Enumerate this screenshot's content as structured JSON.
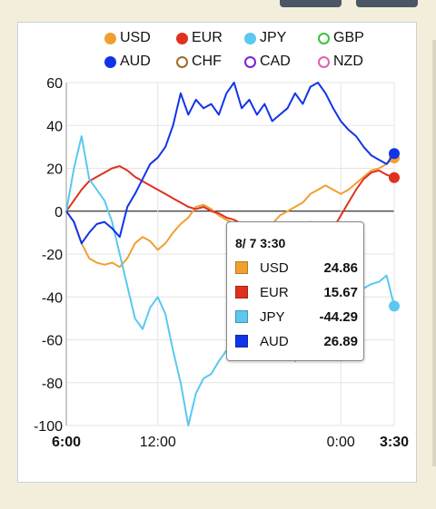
{
  "chart_data": {
    "type": "line",
    "ylim": [
      -100,
      60
    ],
    "yticks": [
      60,
      40,
      20,
      0,
      -20,
      -40,
      -60,
      -80,
      -100
    ],
    "xticks": [
      {
        "label": "6:00",
        "bold": true,
        "t": 0
      },
      {
        "label": "12:00",
        "bold": false,
        "t": 6
      },
      {
        "label": "0:00",
        "bold": false,
        "t": 18
      },
      {
        "label": "3:30",
        "bold": true,
        "t": 21.5
      }
    ],
    "xlim": [
      0,
      21.5
    ],
    "legend": [
      {
        "name": "USD",
        "color": "#f0a030",
        "filled": true
      },
      {
        "name": "EUR",
        "color": "#e03020",
        "filled": true
      },
      {
        "name": "JPY",
        "color": "#5ac8f0",
        "filled": true
      },
      {
        "name": "GBP",
        "color": "#3cc23c",
        "filled": false
      },
      {
        "name": "AUD",
        "color": "#1034e8",
        "filled": true
      },
      {
        "name": "CHF",
        "color": "#a06a28",
        "filled": false
      },
      {
        "name": "CAD",
        "color": "#7a20e0",
        "filled": false
      },
      {
        "name": "NZD",
        "color": "#e060b0",
        "filled": false
      }
    ],
    "series": [
      {
        "name": "USD",
        "color": "#f0a030",
        "points": [
          [
            0,
            0
          ],
          [
            0.5,
            -5
          ],
          [
            1,
            -15
          ],
          [
            1.5,
            -22
          ],
          [
            2,
            -24
          ],
          [
            2.5,
            -25
          ],
          [
            3,
            -24
          ],
          [
            3.5,
            -26
          ],
          [
            4,
            -22
          ],
          [
            4.5,
            -15
          ],
          [
            5,
            -12
          ],
          [
            5.5,
            -14
          ],
          [
            6,
            -18
          ],
          [
            6.5,
            -15
          ],
          [
            7,
            -10
          ],
          [
            7.5,
            -6
          ],
          [
            8,
            -3
          ],
          [
            8.5,
            2
          ],
          [
            9,
            3
          ],
          [
            9.5,
            1
          ],
          [
            10,
            -2
          ],
          [
            10.5,
            -4
          ],
          [
            11,
            -6
          ],
          [
            11.5,
            -8
          ],
          [
            12,
            -10
          ],
          [
            12.5,
            -12
          ],
          [
            13,
            -10
          ],
          [
            13.5,
            -6
          ],
          [
            14,
            -2
          ],
          [
            14.5,
            0
          ],
          [
            15,
            2
          ],
          [
            15.5,
            4
          ],
          [
            16,
            8
          ],
          [
            16.5,
            10
          ],
          [
            17,
            12
          ],
          [
            17.5,
            10
          ],
          [
            18,
            8
          ],
          [
            18.5,
            10
          ],
          [
            19,
            13
          ],
          [
            19.5,
            16
          ],
          [
            20,
            19
          ],
          [
            20.5,
            20
          ],
          [
            21,
            22
          ],
          [
            21.5,
            24.86
          ]
        ]
      },
      {
        "name": "EUR",
        "color": "#e03020",
        "points": [
          [
            0,
            0
          ],
          [
            0.5,
            5
          ],
          [
            1,
            10
          ],
          [
            1.5,
            14
          ],
          [
            2,
            16
          ],
          [
            2.5,
            18
          ],
          [
            3,
            20
          ],
          [
            3.5,
            21
          ],
          [
            4,
            19
          ],
          [
            4.5,
            16
          ],
          [
            5,
            14
          ],
          [
            5.5,
            12
          ],
          [
            6,
            10
          ],
          [
            6.5,
            8
          ],
          [
            7,
            6
          ],
          [
            7.5,
            4
          ],
          [
            8,
            2
          ],
          [
            8.5,
            1
          ],
          [
            9,
            2
          ],
          [
            9.5,
            0
          ],
          [
            10,
            -1
          ],
          [
            10.5,
            -3
          ],
          [
            11,
            -4
          ],
          [
            11.5,
            -6
          ],
          [
            12,
            -8
          ],
          [
            12.5,
            -10
          ],
          [
            13,
            -12
          ],
          [
            13.5,
            -14
          ],
          [
            14,
            -16
          ],
          [
            14.5,
            -15
          ],
          [
            15,
            -12
          ],
          [
            15.5,
            -8
          ],
          [
            16,
            -5
          ],
          [
            16.5,
            -8
          ],
          [
            17,
            -10
          ],
          [
            17.5,
            -8
          ],
          [
            18,
            -2
          ],
          [
            18.5,
            4
          ],
          [
            19,
            10
          ],
          [
            19.5,
            15
          ],
          [
            20,
            18
          ],
          [
            20.5,
            19
          ],
          [
            21,
            17
          ],
          [
            21.5,
            15.67
          ]
        ]
      },
      {
        "name": "JPY",
        "color": "#5ac8f0",
        "points": [
          [
            0,
            0
          ],
          [
            0.5,
            20
          ],
          [
            1,
            35
          ],
          [
            1.5,
            15
          ],
          [
            2,
            10
          ],
          [
            2.5,
            5
          ],
          [
            3,
            -5
          ],
          [
            3.5,
            -20
          ],
          [
            4,
            -35
          ],
          [
            4.5,
            -50
          ],
          [
            5,
            -55
          ],
          [
            5.5,
            -45
          ],
          [
            6,
            -40
          ],
          [
            6.5,
            -48
          ],
          [
            7,
            -65
          ],
          [
            7.5,
            -80
          ],
          [
            8,
            -100
          ],
          [
            8.5,
            -85
          ],
          [
            9,
            -78
          ],
          [
            9.5,
            -76
          ],
          [
            10,
            -70
          ],
          [
            10.5,
            -65
          ],
          [
            11,
            -62
          ],
          [
            11.5,
            -58
          ],
          [
            12,
            -60
          ],
          [
            12.5,
            -64
          ],
          [
            13,
            -66
          ],
          [
            13.5,
            -62
          ],
          [
            14,
            -58
          ],
          [
            14.5,
            -65
          ],
          [
            15,
            -70
          ],
          [
            15.5,
            -62
          ],
          [
            16,
            -55
          ],
          [
            16.5,
            -50
          ],
          [
            17,
            -48
          ],
          [
            17.5,
            -42
          ],
          [
            18,
            -38
          ],
          [
            18.5,
            -36
          ],
          [
            19,
            -38
          ],
          [
            19.5,
            -36
          ],
          [
            20,
            -34
          ],
          [
            20.5,
            -33
          ],
          [
            21,
            -30
          ],
          [
            21.5,
            -44.29
          ]
        ]
      },
      {
        "name": "AUD",
        "color": "#1034e8",
        "points": [
          [
            0,
            0
          ],
          [
            0.5,
            -5
          ],
          [
            1,
            -15
          ],
          [
            1.5,
            -10
          ],
          [
            2,
            -6
          ],
          [
            2.5,
            -5
          ],
          [
            3,
            -8
          ],
          [
            3.5,
            -12
          ],
          [
            4,
            2
          ],
          [
            4.5,
            8
          ],
          [
            5,
            15
          ],
          [
            5.5,
            22
          ],
          [
            6,
            25
          ],
          [
            6.5,
            30
          ],
          [
            7,
            40
          ],
          [
            7.5,
            55
          ],
          [
            8,
            45
          ],
          [
            8.5,
            52
          ],
          [
            9,
            48
          ],
          [
            9.5,
            50
          ],
          [
            10,
            45
          ],
          [
            10.5,
            55
          ],
          [
            11,
            60
          ],
          [
            11.5,
            48
          ],
          [
            12,
            52
          ],
          [
            12.5,
            45
          ],
          [
            13,
            50
          ],
          [
            13.5,
            42
          ],
          [
            14,
            45
          ],
          [
            14.5,
            48
          ],
          [
            15,
            55
          ],
          [
            15.5,
            50
          ],
          [
            16,
            58
          ],
          [
            16.5,
            60
          ],
          [
            17,
            55
          ],
          [
            17.5,
            48
          ],
          [
            18,
            42
          ],
          [
            18.5,
            38
          ],
          [
            19,
            35
          ],
          [
            19.5,
            30
          ],
          [
            20,
            26
          ],
          [
            20.5,
            24
          ],
          [
            21,
            22
          ],
          [
            21.5,
            26.89
          ]
        ]
      }
    ],
    "tooltip": {
      "title": "8/ 7 3:30",
      "rows": [
        {
          "name": "USD",
          "value": "24.86",
          "color": "#f0a030"
        },
        {
          "name": "EUR",
          "value": "15.67",
          "color": "#e03020"
        },
        {
          "name": "JPY",
          "value": "-44.29",
          "color": "#5ac8f0"
        },
        {
          "name": "AUD",
          "value": "26.89",
          "color": "#1034e8"
        }
      ]
    }
  }
}
